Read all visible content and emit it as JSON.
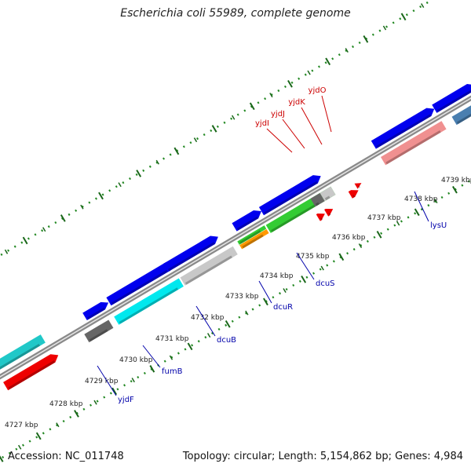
{
  "title": "Escherichia coli 55989, complete genome",
  "footer": {
    "accession": "Accession: NC_011748",
    "stats": "Topology: circular; Length: 5,154,862 bp; Genes: 4,984"
  },
  "ticks": [
    "4727 kbp",
    "4728 kbp",
    "4729 kbp",
    "4730 kbp",
    "4731 kbp",
    "4732 kbp",
    "4733 kbp",
    "4734 kbp",
    "4735 kbp",
    "4736 kbp",
    "4737 kbp",
    "4738 kbp",
    "4739 kbp"
  ],
  "gene_labels_top": [
    "yjdI",
    "yjdJ",
    "yjdK",
    "yjdO"
  ],
  "gene_labels_bottom": [
    "yjdF",
    "fumB",
    "dcuB",
    "dcuR",
    "dcuS",
    "lysU"
  ],
  "colors": {
    "backbone": "#8a8a8a",
    "cds": "#0000ee",
    "red": "#ee0000",
    "cyan": "#00e8ee",
    "teal": "#20c8c8",
    "grey_dark": "#666666",
    "grey_light": "#c8c8c8",
    "green": "#33cc33",
    "orange": "#ff9900",
    "pink": "#f09090",
    "steel": "#4a7fb0",
    "tick": "#228822",
    "label_top": "#cc0000",
    "label_bottom": "#0000aa"
  }
}
